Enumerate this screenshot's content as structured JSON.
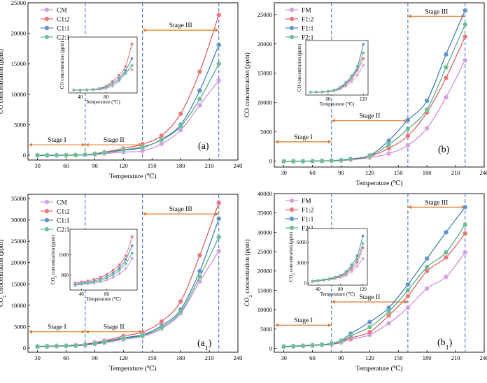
{
  "chart_data": [
    {
      "type": "line",
      "id": "a",
      "panel_label": "(a)",
      "xlabel": "Temperature (℃)",
      "ylabel": "CO concentration (ppm)",
      "xlim": [
        20,
        240
      ],
      "ylim": [
        -800,
        25000
      ],
      "xticks": [
        30,
        60,
        90,
        120,
        150,
        180,
        210,
        240
      ],
      "yticks": [
        0,
        5000,
        10000,
        15000,
        20000,
        25000
      ],
      "stage_lines": [
        80,
        140,
        220
      ],
      "stages": [
        {
          "label": "Stage I",
          "from": 20,
          "to": 80,
          "level": 1700
        },
        {
          "label": "Stage II",
          "from": 80,
          "to": 140,
          "level": 1700
        },
        {
          "label": "Stage III",
          "from": 140,
          "to": 220,
          "level": 20500
        }
      ],
      "x": [
        30,
        40,
        50,
        60,
        70,
        80,
        90,
        100,
        120,
        140,
        160,
        180,
        200,
        220
      ],
      "series": [
        {
          "name": "CM",
          "color": "#c77cd9",
          "values": [
            -30,
            -20,
            -10,
            -10,
            0,
            30,
            70,
            260,
            500,
            700,
            1850,
            4100,
            8200,
            12300
          ]
        },
        {
          "name": "C1:2",
          "color": "#e0474c",
          "values": [
            -20,
            -10,
            0,
            10,
            40,
            100,
            250,
            500,
            1100,
            1800,
            3200,
            6800,
            13700,
            23000
          ]
        },
        {
          "name": "C1:1",
          "color": "#2a6db5",
          "values": [
            -30,
            -20,
            -20,
            -10,
            10,
            60,
            180,
            380,
            800,
            1250,
            2600,
            5000,
            10600,
            18100
          ]
        },
        {
          "name": "C2:1",
          "color": "#3ba570",
          "values": [
            -30,
            -20,
            -10,
            0,
            20,
            80,
            200,
            420,
            900,
            1350,
            2500,
            4700,
            9200,
            15000
          ]
        }
      ],
      "inset": {
        "xlim": [
          22,
          128
        ],
        "ylim": [
          -1500,
          27000
        ],
        "xticks": [
          40,
          80
        ],
        "yticks": [],
        "xlabel": "Temperature (℃)",
        "ylabel": "CO concentration (ppm)",
        "x": [
          30,
          40,
          50,
          60,
          70,
          80,
          90,
          100,
          110,
          120
        ],
        "series": [
          {
            "name": "CM",
            "values": [
              -20,
              -20,
              0,
              50,
              300,
              900,
              2000,
              4500,
              9000,
              10500
            ]
          },
          {
            "name": "C1:2",
            "values": [
              -10,
              0,
              100,
              300,
              900,
              2000,
              4500,
              7500,
              12000,
              23500
            ]
          },
          {
            "name": "C1:1",
            "values": [
              -20,
              -10,
              50,
              200,
              700,
              1600,
              3500,
              6000,
              10000,
              16000
            ]
          },
          {
            "name": "C2:1",
            "values": [
              -20,
              -10,
              50,
              200,
              600,
              1300,
              3000,
              5000,
              8500,
              12500
            ]
          }
        ]
      }
    },
    {
      "type": "line",
      "id": "b",
      "panel_label": "(b)",
      "xlabel": "Temperature (℃)",
      "ylabel": "CO concentration (ppm)",
      "xlim": [
        20,
        240
      ],
      "ylim": [
        -1000,
        27000
      ],
      "xticks": [
        30,
        60,
        90,
        120,
        150,
        180,
        210,
        240
      ],
      "yticks": [
        0,
        5000,
        10000,
        15000,
        20000,
        25000
      ],
      "stage_lines": [
        80,
        160,
        220
      ],
      "stages": [
        {
          "label": "Stage I",
          "from": 20,
          "to": 80,
          "level": 3300
        },
        {
          "label": "Stage II",
          "from": 80,
          "to": 160,
          "level": 6900
        },
        {
          "label": "Stage III",
          "from": 160,
          "to": 220,
          "level": 24700
        }
      ],
      "x": [
        30,
        40,
        50,
        60,
        70,
        80,
        90,
        100,
        120,
        140,
        160,
        180,
        200,
        220
      ],
      "series": [
        {
          "name": "FM",
          "color": "#c77cd9",
          "values": [
            -30,
            -20,
            -10,
            0,
            20,
            50,
            100,
            220,
            600,
            1300,
            2700,
            5600,
            10900,
            17200
          ]
        },
        {
          "name": "F1:2",
          "color": "#e0474c",
          "values": [
            -20,
            -10,
            0,
            20,
            40,
            80,
            150,
            300,
            800,
            2200,
            4300,
            8300,
            14200,
            21200
          ]
        },
        {
          "name": "F1:1",
          "color": "#2a6db5",
          "values": [
            -20,
            -10,
            0,
            20,
            50,
            100,
            200,
            400,
            1000,
            3500,
            7000,
            10300,
            18200,
            25700
          ]
        },
        {
          "name": "F2:1",
          "color": "#3ba570",
          "values": [
            -20,
            -10,
            0,
            20,
            50,
            90,
            170,
            350,
            900,
            2800,
            5500,
            8800,
            16000,
            23300
          ]
        }
      ],
      "inset": {
        "xlim": [
          22,
          128
        ],
        "ylim": [
          -1500,
          27000
        ],
        "xticks": [
          60,
          120
        ],
        "yticks": [],
        "xlabel": "Temperature (℃)",
        "ylabel": "CO concentration (ppm)",
        "x": [
          30,
          40,
          50,
          60,
          70,
          80,
          90,
          100,
          110,
          120
        ],
        "series": [
          {
            "name": "FM",
            "values": [
              -20,
              0,
              50,
              200,
              600,
              1500,
              3200,
              5500,
              9000,
              14000
            ]
          },
          {
            "name": "F1:2",
            "values": [
              -10,
              50,
              150,
              400,
              900,
              2000,
              4000,
              7000,
              11500,
              17500
            ]
          },
          {
            "name": "F1:1",
            "values": [
              -10,
              50,
              200,
              500,
              1100,
              2500,
              5000,
              8500,
              13500,
              25000
            ]
          },
          {
            "name": "F2:1",
            "values": [
              -10,
              50,
              150,
              450,
              1000,
              2200,
              4500,
              7500,
              12500,
              20500
            ]
          }
        ]
      }
    },
    {
      "type": "line",
      "id": "a1",
      "panel_label": "(a",
      "panel_sub": "1",
      "panel_close": ")",
      "xlabel": "Temperature (℃)",
      "ylabel": "CO",
      "ylabel_sub": "2",
      "ylabel_rest": " concentration (ppm)",
      "xlim": [
        20,
        240
      ],
      "ylim": [
        -1000,
        36000
      ],
      "xticks": [
        30,
        60,
        90,
        120,
        150,
        180,
        210,
        240
      ],
      "yticks": [
        0,
        5000,
        10000,
        15000,
        20000,
        25000,
        30000,
        35000
      ],
      "stage_lines": [
        80,
        140,
        220
      ],
      "stages": [
        {
          "label": "Stage I",
          "from": 20,
          "to": 80,
          "level": 3800
        },
        {
          "label": "Stage II",
          "from": 80,
          "to": 140,
          "level": 3800
        },
        {
          "label": "Stage III",
          "from": 140,
          "to": 220,
          "level": 31400
        }
      ],
      "x": [
        30,
        40,
        50,
        60,
        70,
        80,
        90,
        100,
        120,
        140,
        160,
        180,
        200,
        220
      ],
      "series": [
        {
          "name": "CM",
          "color": "#c77cd9",
          "values": [
            300,
            350,
            400,
            450,
            500,
            650,
            900,
            1200,
            2000,
            2700,
            4500,
            8100,
            15600,
            22700
          ]
        },
        {
          "name": "C1:2",
          "color": "#e0474c",
          "values": [
            400,
            450,
            500,
            550,
            700,
            900,
            1300,
            1700,
            2800,
            3700,
            6200,
            10900,
            21700,
            34000
          ]
        },
        {
          "name": "C1:1",
          "color": "#2a6db5",
          "values": [
            350,
            400,
            450,
            500,
            600,
            800,
            1100,
            1500,
            2400,
            3100,
            5200,
            9000,
            18000,
            30300
          ]
        },
        {
          "name": "C2:1",
          "color": "#3ba570",
          "values": [
            300,
            350,
            420,
            480,
            550,
            750,
            1000,
            1350,
            2200,
            2900,
            4800,
            8500,
            16700,
            26000
          ]
        }
      ],
      "inset": {
        "xlim": [
          22,
          128
        ],
        "ylim": [
          200,
          2600
        ],
        "xticks": [
          40,
          80
        ],
        "yticks": [
          800,
          1600
        ],
        "xlabel": "Temperature (℃)",
        "ylabel": "CO",
        "ylabel_sub": "2",
        "ylabel_rest": " concentration (ppm)",
        "x": [
          30,
          40,
          50,
          60,
          70,
          80,
          90,
          100,
          110,
          120
        ],
        "series": [
          {
            "name": "CM",
            "values": [
              380,
              420,
              450,
              480,
              520,
              600,
              700,
              850,
              1050,
              1450
            ]
          },
          {
            "name": "C1:2",
            "values": [
              480,
              520,
              560,
              620,
              700,
              820,
              980,
              1200,
              1550,
              2300
            ]
          },
          {
            "name": "C1:1",
            "values": [
              430,
              470,
              510,
              560,
              630,
              740,
              880,
              1080,
              1400,
              1950
            ]
          },
          {
            "name": "C2:1",
            "values": [
              400,
              440,
              480,
              520,
              580,
              680,
              800,
              980,
              1250,
              1650
            ]
          }
        ]
      }
    },
    {
      "type": "line",
      "id": "b1",
      "panel_label": "(b",
      "panel_sub": "1",
      "panel_close": ")",
      "xlabel": "Temperature (℃)",
      "ylabel": "CO",
      "ylabel_sub": "2",
      "ylabel_rest": " concentration (ppm)",
      "xlim": [
        20,
        240
      ],
      "ylim": [
        -1000,
        40000
      ],
      "xticks": [
        30,
        60,
        90,
        120,
        150,
        180,
        210,
        240
      ],
      "yticks": [
        0,
        5000,
        10000,
        15000,
        20000,
        25000,
        30000,
        35000,
        40000
      ],
      "stage_lines": [
        80,
        160,
        220
      ],
      "stages": [
        {
          "label": "Stage I",
          "from": 20,
          "to": 80,
          "level": 6000
        },
        {
          "label": "Stage II",
          "from": 80,
          "to": 160,
          "level": 12000
        },
        {
          "label": "Stage III",
          "from": 160,
          "to": 220,
          "level": 36500
        }
      ],
      "x": [
        30,
        40,
        50,
        60,
        70,
        80,
        90,
        100,
        120,
        140,
        160,
        180,
        200,
        220
      ],
      "series": [
        {
          "name": "FM",
          "color": "#c77cd9",
          "values": [
            400,
            500,
            600,
            700,
            850,
            1000,
            1500,
            2300,
            3500,
            6500,
            10500,
            15500,
            18500,
            24800
          ]
        },
        {
          "name": "F1:2",
          "color": "#e0474c",
          "values": [
            450,
            550,
            650,
            800,
            950,
            1150,
            1700,
            2700,
            4200,
            8500,
            13500,
            20000,
            23500,
            29700
          ]
        },
        {
          "name": "F1:1",
          "color": "#2a6db5",
          "values": [
            500,
            600,
            700,
            850,
            1000,
            1300,
            2000,
            3800,
            6800,
            10500,
            16500,
            23200,
            30000,
            36500
          ]
        },
        {
          "name": "F2:1",
          "color": "#3ba570",
          "values": [
            450,
            550,
            650,
            800,
            950,
            1200,
            1800,
            3200,
            5500,
            9500,
            15000,
            21000,
            24800,
            32000
          ]
        }
      ],
      "inset": {
        "xlim": [
          22,
          128
        ],
        "ylim": [
          -300,
          8000
        ],
        "xticks": [
          40,
          80,
          120
        ],
        "yticks": [
          0,
          3000,
          6000
        ],
        "xlabel": "Temperature (℃)",
        "ylabel": "CO",
        "ylabel_sub": "2",
        "ylabel_rest": " concentration (ppm)",
        "x": [
          30,
          40,
          50,
          60,
          70,
          80,
          90,
          100,
          110,
          120
        ],
        "series": [
          {
            "name": "FM",
            "values": [
              200,
              300,
              400,
              500,
              650,
              850,
              1150,
              1700,
              2500,
              3600
            ]
          },
          {
            "name": "F1:2",
            "values": [
              250,
              350,
              450,
              550,
              700,
              950,
              1350,
              2100,
              3100,
              5200
            ]
          },
          {
            "name": "F1:1",
            "values": [
              300,
              400,
              500,
              650,
              850,
              1150,
              1700,
              2700,
              4000,
              6900
            ]
          },
          {
            "name": "F2:1",
            "values": [
              250,
              350,
              450,
              600,
              750,
              1050,
              1500,
              2400,
              3500,
              5800
            ]
          }
        ]
      }
    }
  ]
}
